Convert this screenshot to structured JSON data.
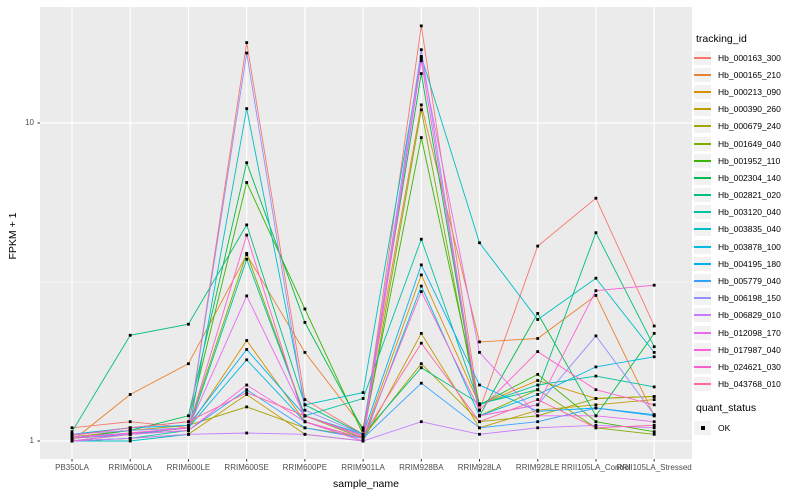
{
  "chart_data": {
    "type": "line",
    "title": "",
    "x_axis": {
      "label": "sample_name",
      "categories": [
        "PB350LA",
        "RRIM600LA",
        "RRIM600LE",
        "RRIM600SE",
        "RRIM600PE",
        "RRIM901LA",
        "RRIM928BA",
        "RRIM928LA",
        "RRIM928LE",
        "RRII105LA_Control",
        "RRII105LA_Stressed"
      ]
    },
    "y_axis": {
      "label": "FPKM + 1",
      "scale": "log10",
      "tick_values": [
        1,
        10
      ],
      "tick_labels": [
        "1",
        "10"
      ],
      "minor_gridline_values": [
        3.162
      ],
      "range_approx": [
        0.88,
        22.4
      ]
    },
    "panel": {
      "background": "#EBEBEB",
      "gridline_color": "#FFFFFF",
      "tick_color": "#333333",
      "axis_text_color": "#4D4D4D"
    },
    "points": {
      "shape": "square",
      "color": "#000000"
    },
    "legend": {
      "tracking_title": "tracking_id",
      "quant_title": "quant_status",
      "quant_items": [
        {
          "label": "OK",
          "marker": "black-square"
        }
      ]
    },
    "series": [
      {
        "name": "Hb_000163_300",
        "color": "#F8766D",
        "values": [
          1.1,
          1.15,
          1.1,
          17.9,
          1.35,
          1.05,
          20.2,
          1.25,
          4.1,
          5.8,
          2.3
        ]
      },
      {
        "name": "Hb_000165_210",
        "color": "#EA8331",
        "values": [
          1.0,
          1.4,
          1.75,
          3.85,
          1.9,
          1.1,
          11.4,
          2.05,
          2.1,
          2.87,
          1.2
        ]
      },
      {
        "name": "Hb_000213_090",
        "color": "#D89000",
        "values": [
          1.02,
          1.05,
          1.1,
          2.07,
          1.15,
          1.02,
          3.33,
          1.3,
          1.55,
          1.36,
          1.38
        ]
      },
      {
        "name": "Hb_000390_260",
        "color": "#C09B00",
        "values": [
          1.0,
          1.02,
          1.05,
          1.4,
          1.05,
          1.0,
          2.18,
          1.1,
          1.25,
          1.3,
          1.35
        ]
      },
      {
        "name": "Hb_000679_240",
        "color": "#A3A500",
        "values": [
          1.03,
          1.08,
          1.12,
          1.28,
          1.1,
          1.03,
          1.75,
          1.15,
          1.2,
          1.36,
          1.38
        ]
      },
      {
        "name": "Hb_001649_040",
        "color": "#7CAE00",
        "values": [
          1.0,
          1.05,
          1.1,
          3.89,
          1.2,
          1.02,
          11.0,
          1.2,
          1.45,
          1.1,
          1.05
        ]
      },
      {
        "name": "Hb_001952_110",
        "color": "#39B600",
        "values": [
          1.05,
          1.1,
          1.15,
          6.5,
          2.6,
          1.05,
          9.0,
          1.3,
          1.62,
          1.15,
          1.07
        ]
      },
      {
        "name": "Hb_002304_140",
        "color": "#00BB4E",
        "values": [
          1.02,
          1.08,
          1.2,
          7.5,
          2.36,
          1.08,
          14.3,
          1.2,
          2.52,
          1.2,
          2.18
        ]
      },
      {
        "name": "Hb_002821_020",
        "color": "#00BF7D",
        "values": [
          1.07,
          2.15,
          2.33,
          4.78,
          1.3,
          1.05,
          1.7,
          1.31,
          1.45,
          4.52,
          1.98
        ]
      },
      {
        "name": "Hb_003120_040",
        "color": "#00C1A3",
        "values": [
          1.0,
          1.02,
          1.08,
          3.73,
          1.2,
          1.36,
          4.31,
          1.3,
          1.5,
          1.6,
          1.48
        ]
      },
      {
        "name": "Hb_003835_040",
        "color": "#00BFC4",
        "values": [
          1.0,
          1.0,
          1.05,
          11.1,
          1.3,
          1.42,
          16.2,
          4.2,
          2.41,
          3.25,
          1.9
        ]
      },
      {
        "name": "Hb_003878_100",
        "color": "#00BAE0",
        "values": [
          1.0,
          1.05,
          1.1,
          1.8,
          1.15,
          1.0,
          3.07,
          1.2,
          1.4,
          1.71,
          1.84
        ]
      },
      {
        "name": "Hb_004195_180",
        "color": "#00B0F6",
        "values": [
          1.05,
          1.1,
          1.12,
          1.94,
          1.2,
          1.05,
          3.58,
          1.5,
          1.24,
          1.27,
          1.21
        ]
      },
      {
        "name": "Hb_005779_040",
        "color": "#35A2FF",
        "values": [
          1.02,
          1.05,
          1.08,
          1.45,
          1.1,
          1.02,
          1.52,
          1.1,
          1.15,
          1.27,
          1.2
        ]
      },
      {
        "name": "Hb_006198_150",
        "color": "#9590FF",
        "values": [
          1.05,
          1.08,
          1.1,
          16.6,
          1.25,
          1.05,
          17.0,
          1.2,
          1.3,
          2.14,
          1.21
        ]
      },
      {
        "name": "Hb_006829_010",
        "color": "#C77CFF",
        "values": [
          1.0,
          1.02,
          1.05,
          1.06,
          1.05,
          1.0,
          1.15,
          1.05,
          1.1,
          1.12,
          1.1
        ]
      },
      {
        "name": "Hb_012098_170",
        "color": "#E76BF3",
        "values": [
          1.03,
          1.06,
          1.1,
          2.86,
          1.2,
          1.03,
          16.0,
          1.9,
          1.2,
          1.2,
          1.15
        ]
      },
      {
        "name": "Hb_017987_040",
        "color": "#FA62DB",
        "values": [
          1.0,
          1.05,
          1.08,
          1.5,
          1.15,
          1.0,
          15.7,
          1.2,
          1.3,
          2.97,
          3.09
        ]
      },
      {
        "name": "Hb_024621_030",
        "color": "#FF61CC",
        "values": [
          1.02,
          1.06,
          1.1,
          4.44,
          1.15,
          1.02,
          2.95,
          1.25,
          1.91,
          1.45,
          1.3
        ]
      },
      {
        "name": "Hb_043768_010",
        "color": "#FF67A4",
        "values": [
          1.04,
          1.1,
          1.15,
          1.42,
          1.2,
          1.04,
          2.03,
          1.15,
          1.35,
          1.1,
          1.12
        ]
      }
    ]
  }
}
